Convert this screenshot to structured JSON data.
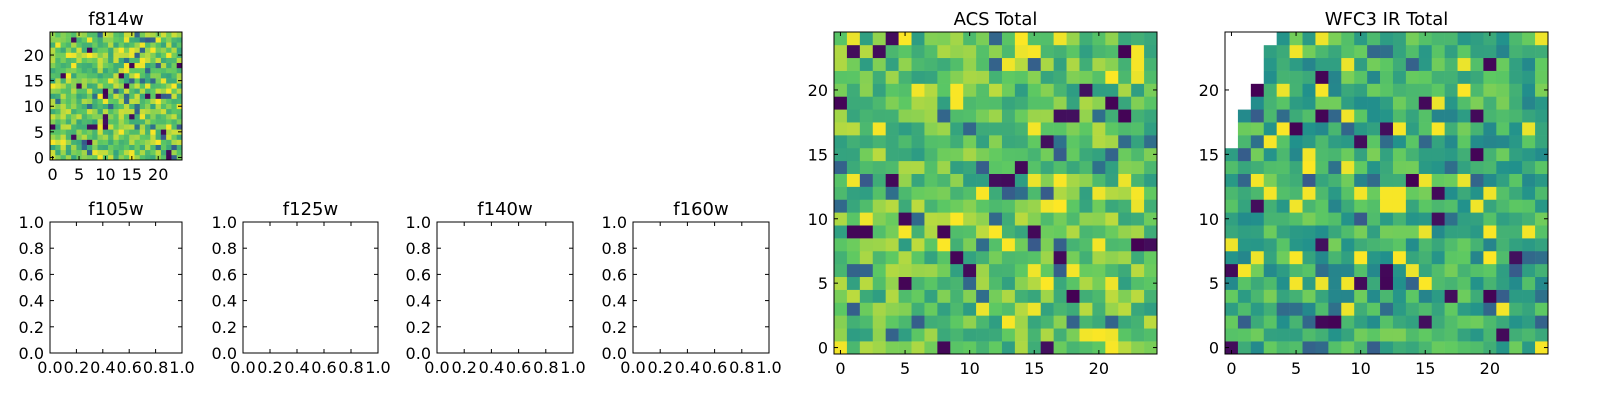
{
  "chart_data": [
    {
      "type": "heatmap",
      "title": "f814w",
      "xticks": [
        "0",
        "5",
        "10",
        "15",
        "20"
      ],
      "yticks": [
        "0",
        "5",
        "10",
        "15",
        "20"
      ],
      "xlim": [
        -0.5,
        24.5
      ],
      "ylim": [
        -0.5,
        24.5
      ],
      "grid_size": [
        25,
        25
      ],
      "colormap": "viridis"
    },
    {
      "type": "empty",
      "title": "f105w",
      "xticks": [
        "0.0",
        "0.2",
        "0.4",
        "0.6",
        "0.8",
        "1.0"
      ],
      "yticks": [
        "0.0",
        "0.2",
        "0.4",
        "0.6",
        "0.8",
        "1.0"
      ],
      "xlim": [
        0,
        1
      ],
      "ylim": [
        0,
        1
      ]
    },
    {
      "type": "empty",
      "title": "f125w",
      "xticks": [
        "0.0",
        "0.2",
        "0.4",
        "0.6",
        "0.8",
        "1.0"
      ],
      "yticks": [
        "0.0",
        "0.2",
        "0.4",
        "0.6",
        "0.8",
        "1.0"
      ],
      "xlim": [
        0,
        1
      ],
      "ylim": [
        0,
        1
      ]
    },
    {
      "type": "empty",
      "title": "f140w",
      "xticks": [
        "0.0",
        "0.2",
        "0.4",
        "0.6",
        "0.8",
        "1.0"
      ],
      "yticks": [
        "0.0",
        "0.2",
        "0.4",
        "0.6",
        "0.8",
        "1.0"
      ],
      "xlim": [
        0,
        1
      ],
      "ylim": [
        0,
        1
      ]
    },
    {
      "type": "empty",
      "title": "f160w",
      "xticks": [
        "0.0",
        "0.2",
        "0.4",
        "0.6",
        "0.8",
        "1.0"
      ],
      "yticks": [
        "0.0",
        "0.2",
        "0.4",
        "0.6",
        "0.8",
        "1.0"
      ],
      "xlim": [
        0,
        1
      ],
      "ylim": [
        0,
        1
      ]
    },
    {
      "type": "heatmap",
      "title": "ACS Total",
      "xticks": [
        "0",
        "5",
        "10",
        "15",
        "20"
      ],
      "yticks": [
        "0",
        "5",
        "10",
        "15",
        "20"
      ],
      "xlim": [
        -0.5,
        24.5
      ],
      "ylim": [
        -0.5,
        24.5
      ],
      "grid_size": [
        25,
        25
      ],
      "colormap": "viridis"
    },
    {
      "type": "heatmap",
      "title": "WFC3 IR Total",
      "xticks": [
        "0",
        "5",
        "10",
        "15",
        "20"
      ],
      "yticks": [
        "0",
        "5",
        "10",
        "15",
        "20"
      ],
      "xlim": [
        -0.5,
        24.5
      ],
      "ylim": [
        -0.5,
        24.5
      ],
      "grid_size": [
        25,
        25
      ],
      "colormap": "viridis",
      "blank_top_left_corner": true
    }
  ]
}
